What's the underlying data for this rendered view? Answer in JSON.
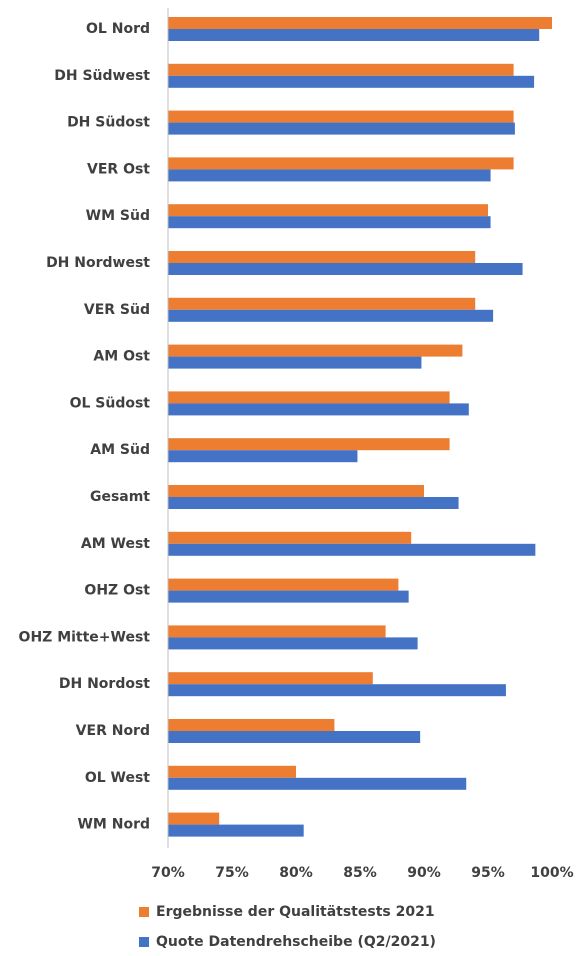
{
  "chart_data": {
    "type": "barh",
    "categories": [
      "OL Nord",
      "DH Südwest",
      "DH Südost",
      "VER Ost",
      "WM Süd",
      "DH Nordwest",
      "VER Süd",
      "AM Ost",
      "OL Südost",
      "AM Süd",
      "Gesamt",
      "AM West",
      "OHZ Ost",
      "OHZ Mitte+West",
      "DH Nordost",
      "VER Nord",
      "OL West",
      "WM Nord"
    ],
    "series": [
      {
        "name": "Ergebnisse der Qualitätstests 2021",
        "color": "#ed7d31",
        "values": [
          100,
          97,
          97,
          97,
          95,
          94,
          94,
          93,
          92,
          92,
          90,
          89,
          88,
          87,
          86,
          83,
          80,
          74
        ]
      },
      {
        "name": "Quote Datendrehscheibe (Q2/2021)",
        "color": "#4472c4",
        "values": [
          99.0,
          98.6,
          97.1,
          95.2,
          95.2,
          97.7,
          95.4,
          89.8,
          93.5,
          84.8,
          92.7,
          98.7,
          88.8,
          89.5,
          96.4,
          89.7,
          93.3,
          80.6
        ]
      }
    ],
    "xlim": [
      70,
      100
    ],
    "xticks": [
      {
        "value": 70,
        "label": "70%"
      },
      {
        "value": 75,
        "label": "75%"
      },
      {
        "value": 80,
        "label": "80%"
      },
      {
        "value": 85,
        "label": "85%"
      },
      {
        "value": 90,
        "label": "90%"
      },
      {
        "value": 95,
        "label": "95%"
      },
      {
        "value": 100,
        "label": "100%"
      }
    ],
    "legend": "bottom"
  }
}
